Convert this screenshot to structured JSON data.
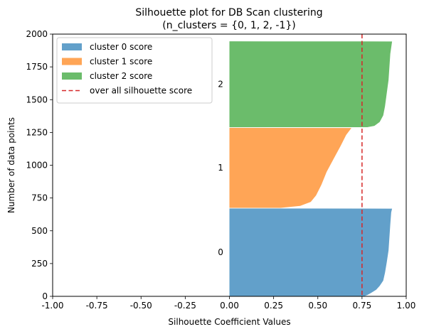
{
  "chart_data": {
    "type": "area",
    "title": "Silhouette plot for DB Scan clustering",
    "subtitle": "(n_clusters = {0, 1, 2, -1})",
    "xlabel": "Silhouette Coefficient Values",
    "ylabel": "Number of data points",
    "xlim": [
      -1.0,
      1.0
    ],
    "ylim": [
      0,
      2000
    ],
    "x_ticks": [
      "-1.00",
      "-0.75",
      "-0.50",
      "-0.25",
      "0.00",
      "0.25",
      "0.50",
      "0.75",
      "1.00"
    ],
    "y_ticks": [
      "0",
      "250",
      "500",
      "750",
      "1000",
      "1250",
      "1500",
      "1750",
      "2000"
    ],
    "grid": false,
    "legend_position": "top-left",
    "legend": [
      {
        "label": "cluster 0 score",
        "color": "#1f77b4",
        "kind": "patch"
      },
      {
        "label": "cluster 1 score",
        "color": "#ff7f0e",
        "kind": "patch"
      },
      {
        "label": "cluster 2 score",
        "color": "#2ca02c",
        "kind": "patch"
      },
      {
        "label": "over all silhouette score",
        "color": "#d62728",
        "kind": "dashed-line"
      }
    ],
    "series": [
      {
        "name": "cluster 0 score",
        "cluster_label": "0",
        "color": "#1f77b4",
        "y_start": 0,
        "y_end": 670,
        "profile": [
          [
            0,
            0.76
          ],
          [
            10,
            0.78
          ],
          [
            25,
            0.8
          ],
          [
            50,
            0.83
          ],
          [
            80,
            0.85
          ],
          [
            120,
            0.87
          ],
          [
            180,
            0.88
          ],
          [
            260,
            0.89
          ],
          [
            350,
            0.9
          ],
          [
            450,
            0.905
          ],
          [
            550,
            0.91
          ],
          [
            640,
            0.915
          ],
          [
            669,
            0.92
          ]
        ]
      },
      {
        "name": "cluster 1 score",
        "cluster_label": "1",
        "color": "#ff7f0e",
        "y_start": 675,
        "y_end": 1285,
        "profile": [
          [
            675,
            0.29
          ],
          [
            690,
            0.4
          ],
          [
            720,
            0.46
          ],
          [
            770,
            0.49
          ],
          [
            850,
            0.52
          ],
          [
            950,
            0.55
          ],
          [
            1050,
            0.59
          ],
          [
            1150,
            0.63
          ],
          [
            1230,
            0.66
          ],
          [
            1284,
            0.69
          ]
        ]
      },
      {
        "name": "cluster 2 score",
        "cluster_label": "2",
        "color": "#2ca02c",
        "y_start": 1290,
        "y_end": 1945,
        "profile": [
          [
            1290,
            0.78
          ],
          [
            1300,
            0.82
          ],
          [
            1330,
            0.85
          ],
          [
            1380,
            0.87
          ],
          [
            1450,
            0.88
          ],
          [
            1550,
            0.89
          ],
          [
            1650,
            0.9
          ],
          [
            1750,
            0.905
          ],
          [
            1850,
            0.91
          ],
          [
            1944,
            0.92
          ]
        ]
      }
    ],
    "reference_line": {
      "name": "over all silhouette score",
      "x": 0.75,
      "color": "#d62728",
      "style": "dashed"
    }
  }
}
